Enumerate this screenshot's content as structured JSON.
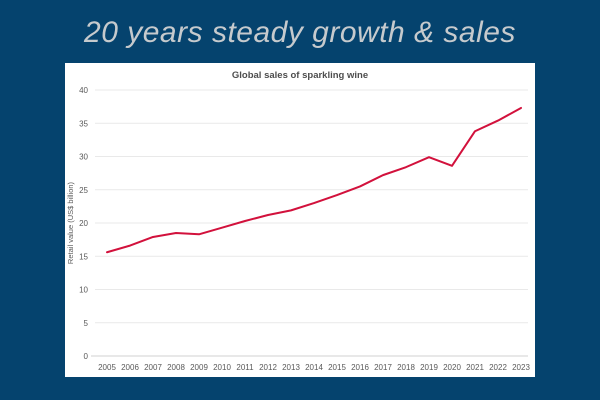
{
  "page": {
    "background_color": "#05436e"
  },
  "header": {
    "title": "20 years steady growth & sales",
    "text_color": "#c6cacd"
  },
  "chart_panel": {
    "background_color": "#ffffff"
  },
  "chart_data": {
    "type": "line",
    "title": "Global sales of sparkling wine",
    "xlabel": "",
    "ylabel": "Retail value (US$ billion)",
    "categories": [
      "2005",
      "2006",
      "2007",
      "2008",
      "2009",
      "2010",
      "2011",
      "2012",
      "2013",
      "2014",
      "2015",
      "2016",
      "2017",
      "2018",
      "2019",
      "2020",
      "2021",
      "2022",
      "2023"
    ],
    "values": [
      15.6,
      16.6,
      17.9,
      18.5,
      18.3,
      19.3,
      20.3,
      21.2,
      21.9,
      23.0,
      24.2,
      25.5,
      27.2,
      28.4,
      29.9,
      28.6,
      33.8,
      35.4,
      37.3
    ],
    "series_name": "Global sales of sparkling wine",
    "ylim": [
      0,
      40
    ],
    "yticks": [
      0,
      5,
      10,
      15,
      20,
      25,
      30,
      35,
      40
    ],
    "grid": true,
    "legend": "none",
    "line_color": "#d2113c",
    "grid_color": "#e9e9e9",
    "axis_color": "#d2d2d2",
    "tick_label_color": "#595959",
    "title_color": "#4d4d4d"
  }
}
